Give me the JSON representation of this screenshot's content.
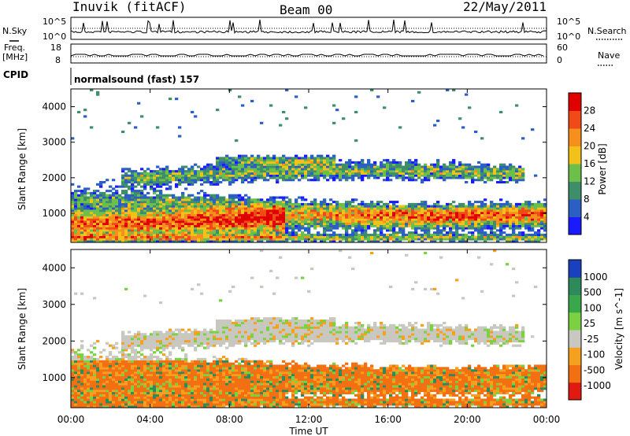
{
  "header": {
    "station": "Inuvik (fitACF)",
    "beam": "Beam 00",
    "date": "22/May/2011"
  },
  "status_panels": {
    "noise": {
      "left_label": "N.Sky",
      "right_label": "N.Search",
      "left_ticks": [
        "10^5",
        "10^0"
      ],
      "right_ticks": [
        "10^5",
        "10^0"
      ]
    },
    "freq": {
      "left_label_line1": "Freq.",
      "left_label_line2": "[MHz]",
      "right_label": "Nave",
      "left_ticks": [
        "18",
        "8"
      ],
      "right_ticks": [
        "60",
        "0"
      ]
    },
    "cpid": {
      "label": "CPID",
      "program": "normalsound (fast) 157"
    }
  },
  "chart_data": [
    {
      "type": "heatmap",
      "name": "power",
      "ylabel": "Slant Range [km]",
      "yticks": [
        "1000",
        "2000",
        "3000",
        "4000"
      ],
      "ylim": [
        180,
        4500
      ],
      "colorbar_label": "Power [dB]",
      "colorbar_ticks": [
        "4",
        "8",
        "12",
        "16",
        "20",
        "24",
        "28"
      ],
      "colors": [
        "#1a1aff",
        "#2b5fc4",
        "#3e8e6a",
        "#6cc04a",
        "#f2c21a",
        "#f6901c",
        "#ef4a17",
        "#e00000"
      ],
      "xlim": [
        "00:00",
        "24:00"
      ]
    },
    {
      "type": "heatmap",
      "name": "velocity",
      "ylabel": "Slant Range [km]",
      "yticks": [
        "1000",
        "2000",
        "3000",
        "4000"
      ],
      "ylim": [
        180,
        4500
      ],
      "colorbar_label": "Velocity [m s^-1]",
      "colorbar_ticks": [
        "1000",
        "500",
        "100",
        "25",
        "-25",
        "-100",
        "-500",
        "-1000"
      ],
      "colors": [
        "#1a3fbf",
        "#2e8a5a",
        "#38a84a",
        "#7cd142",
        "#c8c8c0",
        "#f6a020",
        "#f27012",
        "#e01a10"
      ],
      "xlabel": "Time UT",
      "xticks": [
        "00:00",
        "04:00",
        "08:00",
        "12:00",
        "16:00",
        "20:00",
        "00:00"
      ],
      "xlim": [
        "00:00",
        "24:00"
      ]
    }
  ]
}
